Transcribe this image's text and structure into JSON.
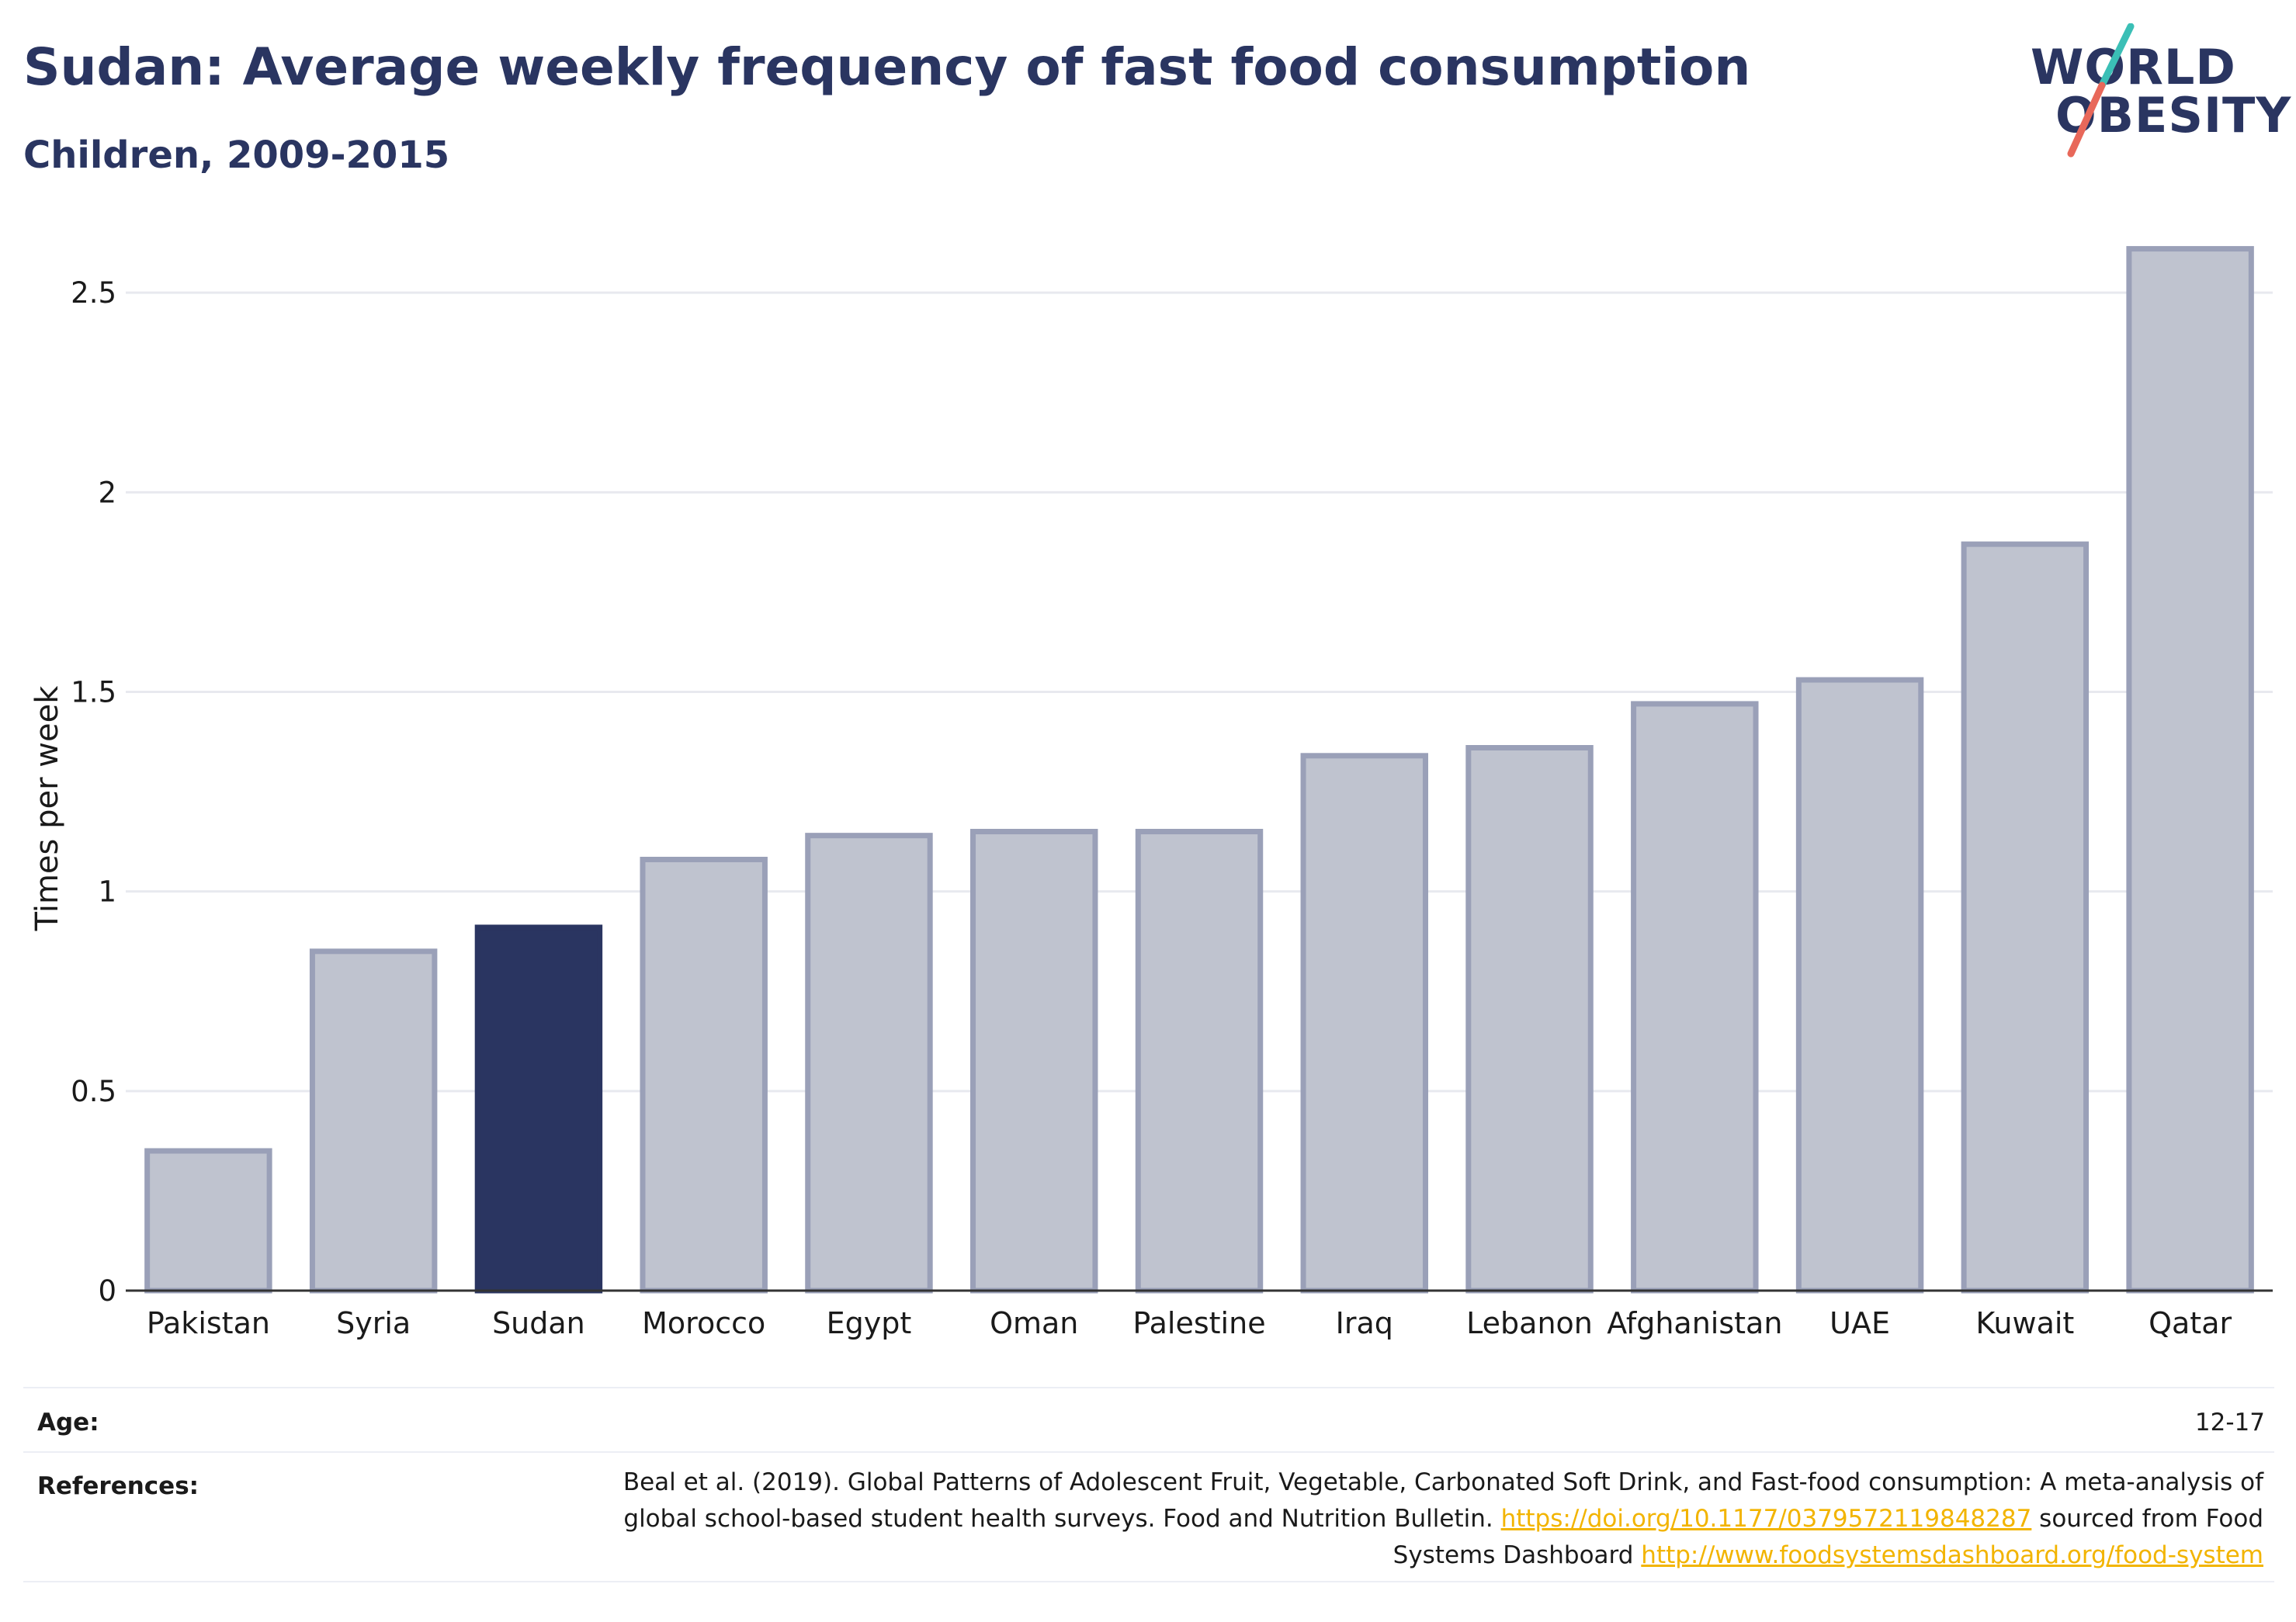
{
  "header": {
    "title": "Sudan: Average weekly frequency of fast food consumption",
    "subtitle": "Children, 2009-2015"
  },
  "logo": {
    "line1": "WORLD",
    "line2": "OBESITY",
    "colors": {
      "text": "#2a3561",
      "slash_top": "#3bbfb6",
      "slash_bottom": "#e8685a"
    }
  },
  "chart_data": {
    "type": "bar",
    "categories": [
      "Pakistan",
      "Syria",
      "Sudan",
      "Morocco",
      "Egypt",
      "Oman",
      "Palestine",
      "Iraq",
      "Lebanon",
      "Afghanistan",
      "UAE",
      "Kuwait",
      "Qatar"
    ],
    "values": [
      0.35,
      0.85,
      0.91,
      1.08,
      1.14,
      1.15,
      1.15,
      1.34,
      1.36,
      1.47,
      1.53,
      1.87,
      2.61
    ],
    "highlight": "Sudan",
    "ylabel": "Times per week",
    "xlabel": "",
    "ylim": [
      0,
      2.65
    ],
    "yticks": [
      0,
      0.5,
      1,
      1.5,
      2,
      2.5
    ],
    "ytick_labels": [
      "0",
      "0.5",
      "1",
      "1.5",
      "2",
      "2.5"
    ],
    "grid": true,
    "colors": {
      "bar": "#bfc3cf",
      "bar_edge": "#9aa0b8",
      "highlight": "#2a3561"
    }
  },
  "footer": {
    "age_label": "Age:",
    "age_value": "12-17",
    "references_label": "References:",
    "references_text_1": "Beal et al. (2019). Global Patterns of Adolescent Fruit, Vegetable, Carbonated Soft Drink, and Fast-food consumption: A meta-analysis of global school-based student health surveys. Food and Nutrition Bulletin. ",
    "references_link_1": "https://doi.org/10.1177/0379572119848287",
    "references_text_2": " sourced from Food Systems Dashboard ",
    "references_link_2": "http://www.foodsystemsdashboard.org/food-system"
  }
}
